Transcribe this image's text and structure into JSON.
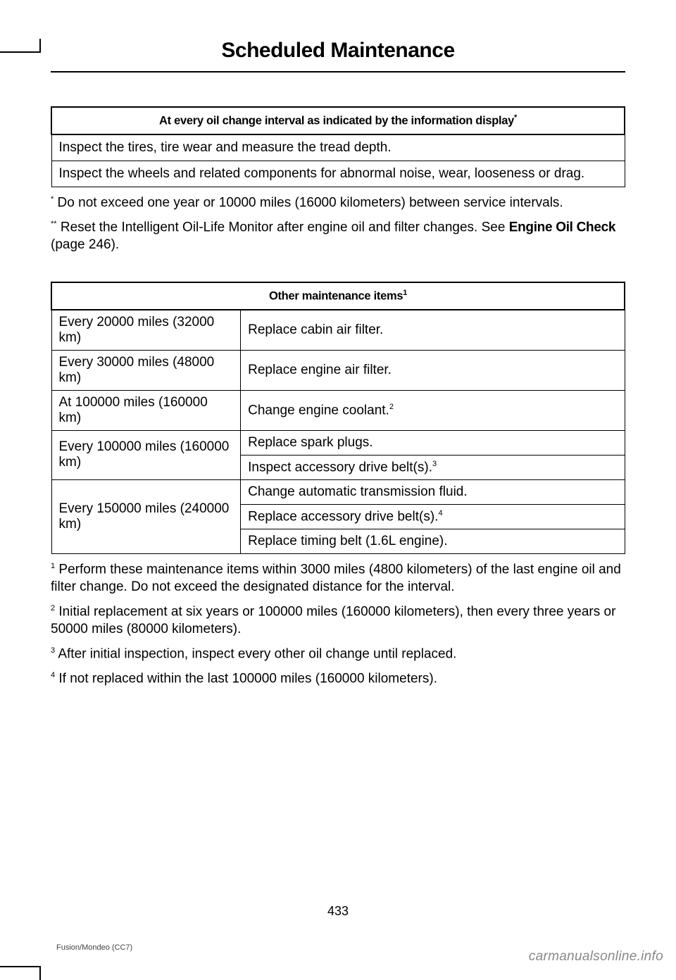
{
  "title": "Scheduled Maintenance",
  "table1": {
    "header": "At every oil change interval as indicated by the information display",
    "header_sup": "*",
    "rows": [
      "Inspect the tires, tire wear and measure the tread depth.",
      "Inspect the wheels and related components for abnormal noise, wear, looseness or drag."
    ]
  },
  "footnotes_top": {
    "star": {
      "marker": "*",
      "text": " Do not exceed one year or 10000 miles (16000 kilometers) between service intervals."
    },
    "dblstar": {
      "marker": "**",
      "pre": " Reset the Intelligent Oil-Life Monitor after engine oil and filter changes.  See ",
      "bold": "Engine Oil Check",
      "post": " (page 246)."
    }
  },
  "table2": {
    "header": "Other maintenance items",
    "header_sup": "1",
    "rows": [
      {
        "interval": "Every 20000 miles (32000 km)",
        "task": "Replace cabin air filter.",
        "sup": "",
        "rowspan": 1
      },
      {
        "interval": "Every 30000 miles (48000 km)",
        "task": "Replace engine air filter.",
        "sup": "",
        "rowspan": 1
      },
      {
        "interval": "At 100000 miles (160000 km)",
        "task": "Change engine coolant.",
        "sup": "2",
        "rowspan": 1
      },
      {
        "interval": "Every 100000 miles (160000 km)",
        "task": "Replace spark plugs.",
        "sup": "",
        "rowspan": 2
      },
      {
        "interval": "",
        "task": "Inspect accessory drive belt(s).",
        "sup": "3",
        "rowspan": 0
      },
      {
        "interval": "Every 150000 miles (240000 km)",
        "task": "Change automatic transmission fluid.",
        "sup": "",
        "rowspan": 3
      },
      {
        "interval": "",
        "task": "Replace accessory drive belt(s).",
        "sup": "4",
        "rowspan": 0
      },
      {
        "interval": "",
        "task": "Replace timing belt (1.6L engine).",
        "sup": "",
        "rowspan": 0
      }
    ]
  },
  "footnotes_bottom": {
    "f1": {
      "marker": "1",
      "text": " Perform these maintenance items within 3000 miles (4800 kilometers) of the last engine oil and filter change. Do not exceed the designated distance for the interval."
    },
    "f2": {
      "marker": "2",
      "text": " Initial replacement at six years or 100000 miles (160000 kilometers), then every three years or 50000 miles (80000 kilometers)."
    },
    "f3": {
      "marker": "3",
      "text": " After initial inspection, inspect every other oil change until replaced."
    },
    "f4": {
      "marker": "4",
      "text": " If not replaced within the last 100000 miles (160000 kilometers)."
    }
  },
  "page_number": "433",
  "footer_left": "Fusion/Mondeo (CC7)",
  "footer_right": "carmanualsonline.info"
}
